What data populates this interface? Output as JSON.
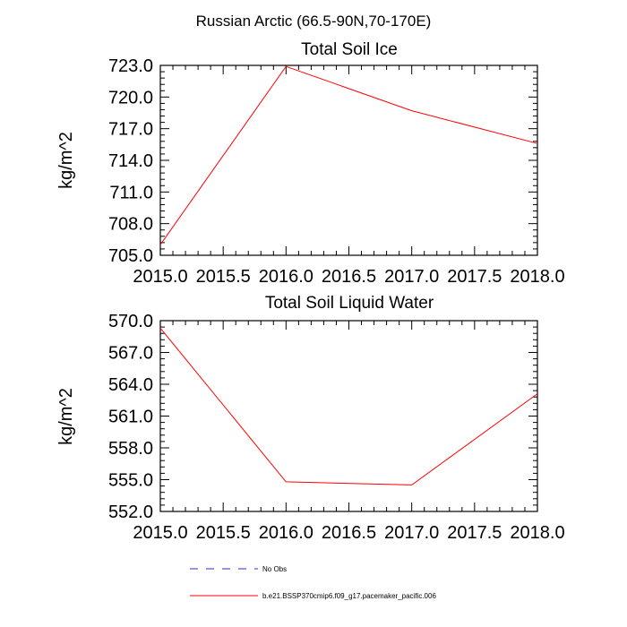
{
  "figure_title": "Russian Arctic (66.5-90N,70-170E)",
  "colors": {
    "series": "#ff0000",
    "obs": "#2b2bc8",
    "axes": "#000000"
  },
  "legend": {
    "obs_label": "No Obs",
    "model_label": "b.e21.BSSP370cmip6.f09_g17.pacemaker_pacific.006"
  },
  "chart_data": [
    {
      "type": "line",
      "title": "Total Soil Ice",
      "xlabel": "",
      "ylabel": "kg/m^2",
      "xlim": [
        2015.0,
        2018.0
      ],
      "ylim": [
        705.0,
        723.0
      ],
      "xticks": [
        "2015.0",
        "2015.5",
        "2016.0",
        "2016.5",
        "2017.0",
        "2017.5",
        "2018.0"
      ],
      "yticks": [
        "705.0",
        "708.0",
        "711.0",
        "714.0",
        "717.0",
        "720.0",
        "723.0"
      ],
      "series": [
        {
          "name": "b.e21.BSSP370cmip6.f09_g17.pacemaker_pacific.006",
          "x": [
            2015,
            2016,
            2017,
            2018
          ],
          "y": [
            706.0,
            722.9,
            718.7,
            715.6
          ]
        }
      ]
    },
    {
      "type": "line",
      "title": "Total Soil Liquid Water",
      "xlabel": "",
      "ylabel": "kg/m^2",
      "xlim": [
        2015.0,
        2018.0
      ],
      "ylim": [
        552.0,
        570.0
      ],
      "xticks": [
        "2015.0",
        "2015.5",
        "2016.0",
        "2016.5",
        "2017.0",
        "2017.5",
        "2018.0"
      ],
      "yticks": [
        "552.0",
        "555.0",
        "558.0",
        "561.0",
        "564.0",
        "567.0",
        "570.0"
      ],
      "series": [
        {
          "name": "b.e21.BSSP370cmip6.f09_g17.pacemaker_pacific.006",
          "x": [
            2015,
            2016,
            2017,
            2018
          ],
          "y": [
            569.3,
            554.8,
            554.5,
            563.1
          ]
        }
      ]
    }
  ]
}
